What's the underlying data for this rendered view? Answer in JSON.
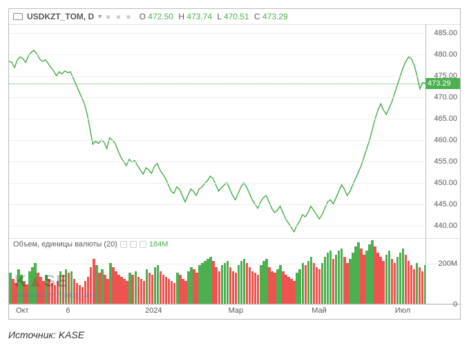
{
  "header": {
    "symbol": "USDKZT_TOM, D",
    "ohlc": {
      "O_lbl": "O",
      "O": "472.50",
      "H_lbl": "H",
      "H": "473.74",
      "L_lbl": "L",
      "L": "470.51",
      "C_lbl": "C",
      "C": "473.29"
    }
  },
  "price_chart": {
    "type": "line",
    "line_color": "#4caf50",
    "line_width": 1.5,
    "grid_color": "#eeeeee",
    "background": "#ffffff",
    "ymin": 437,
    "ymax": 487,
    "yticks": [
      440.0,
      445.0,
      450.0,
      455.0,
      460.0,
      465.0,
      470.0,
      475.0,
      480.0,
      485.0
    ],
    "last_price": 473.29,
    "last_price_line_color": "#4caf50",
    "series": [
      478.5,
      478.2,
      477.0,
      478.8,
      479.5,
      479.0,
      478.2,
      479.8,
      480.6,
      481.0,
      480.2,
      479.0,
      478.4,
      478.8,
      478.0,
      477.0,
      476.2,
      475.0,
      476.0,
      475.5,
      476.2,
      475.8,
      476.0,
      474.5,
      473.0,
      471.5,
      470.0,
      468.5,
      466.0,
      462.5,
      459.0,
      459.8,
      459.2,
      460.0,
      459.5,
      458.0,
      460.5,
      460.0,
      459.2,
      457.5,
      456.0,
      455.0,
      454.0,
      455.5,
      454.8,
      455.2,
      454.0,
      453.0,
      452.0,
      453.5,
      453.0,
      452.2,
      453.8,
      454.5,
      453.0,
      452.0,
      451.0,
      449.5,
      448.0,
      447.5,
      449.0,
      448.5,
      447.0,
      445.5,
      447.0,
      448.5,
      448.0,
      447.0,
      448.5,
      449.0,
      449.8,
      450.5,
      451.5,
      451.0,
      449.5,
      448.0,
      448.8,
      449.5,
      450.0,
      448.5,
      447.0,
      446.0,
      447.5,
      449.0,
      450.0,
      449.0,
      447.5,
      446.0,
      445.0,
      444.0,
      445.5,
      446.5,
      447.0,
      445.5,
      444.0,
      443.0,
      443.5,
      444.5,
      443.0,
      441.5,
      440.5,
      439.5,
      438.5,
      440.0,
      441.0,
      442.5,
      442.0,
      443.0,
      444.5,
      443.5,
      442.5,
      441.5,
      442.5,
      444.0,
      445.5,
      446.0,
      445.0,
      446.5,
      448.0,
      449.5,
      448.5,
      447.0,
      448.0,
      449.5,
      451.0,
      452.5,
      454.0,
      456.0,
      458.0,
      460.0,
      462.5,
      465.0,
      467.0,
      468.5,
      467.0,
      466.0,
      467.5,
      469.0,
      471.0,
      473.0,
      475.0,
      477.0,
      478.5,
      479.5,
      479.0,
      477.5,
      475.0,
      472.0,
      473.5,
      473.29
    ]
  },
  "volume_chart": {
    "type": "bar",
    "title": "Объем, единицы валюты (20)",
    "value": "184M",
    "ymin": 0,
    "ymax": 320,
    "yticks": [
      0,
      200
    ],
    "up_color": "#4caf50",
    "down_color": "#ef5350",
    "bars": [
      {
        "v": 150,
        "c": "u"
      },
      {
        "v": 120,
        "c": "d"
      },
      {
        "v": 100,
        "c": "d"
      },
      {
        "v": 170,
        "c": "u"
      },
      {
        "v": 140,
        "c": "u"
      },
      {
        "v": 110,
        "c": "d"
      },
      {
        "v": 95,
        "c": "d"
      },
      {
        "v": 160,
        "c": "u"
      },
      {
        "v": 180,
        "c": "u"
      },
      {
        "v": 200,
        "c": "u"
      },
      {
        "v": 150,
        "c": "d"
      },
      {
        "v": 130,
        "c": "d"
      },
      {
        "v": 110,
        "c": "d"
      },
      {
        "v": 140,
        "c": "u"
      },
      {
        "v": 120,
        "c": "d"
      },
      {
        "v": 100,
        "c": "d"
      },
      {
        "v": 90,
        "c": "d"
      },
      {
        "v": 110,
        "c": "d"
      },
      {
        "v": 160,
        "c": "u"
      },
      {
        "v": 140,
        "c": "d"
      },
      {
        "v": 170,
        "c": "u"
      },
      {
        "v": 150,
        "c": "d"
      },
      {
        "v": 160,
        "c": "u"
      },
      {
        "v": 120,
        "c": "d"
      },
      {
        "v": 100,
        "c": "d"
      },
      {
        "v": 90,
        "c": "d"
      },
      {
        "v": 80,
        "c": "d"
      },
      {
        "v": 110,
        "c": "d"
      },
      {
        "v": 130,
        "c": "d"
      },
      {
        "v": 180,
        "c": "d"
      },
      {
        "v": 220,
        "c": "d"
      },
      {
        "v": 190,
        "c": "u"
      },
      {
        "v": 150,
        "c": "d"
      },
      {
        "v": 170,
        "c": "u"
      },
      {
        "v": 140,
        "c": "d"
      },
      {
        "v": 120,
        "c": "d"
      },
      {
        "v": 200,
        "c": "u"
      },
      {
        "v": 180,
        "c": "d"
      },
      {
        "v": 160,
        "c": "d"
      },
      {
        "v": 140,
        "c": "d"
      },
      {
        "v": 130,
        "c": "d"
      },
      {
        "v": 120,
        "c": "d"
      },
      {
        "v": 110,
        "c": "d"
      },
      {
        "v": 150,
        "c": "u"
      },
      {
        "v": 140,
        "c": "d"
      },
      {
        "v": 160,
        "c": "u"
      },
      {
        "v": 130,
        "c": "d"
      },
      {
        "v": 120,
        "c": "d"
      },
      {
        "v": 110,
        "c": "d"
      },
      {
        "v": 170,
        "c": "u"
      },
      {
        "v": 150,
        "c": "d"
      },
      {
        "v": 140,
        "c": "d"
      },
      {
        "v": 180,
        "c": "u"
      },
      {
        "v": 190,
        "c": "u"
      },
      {
        "v": 160,
        "c": "d"
      },
      {
        "v": 140,
        "c": "d"
      },
      {
        "v": 130,
        "c": "d"
      },
      {
        "v": 120,
        "c": "d"
      },
      {
        "v": 110,
        "c": "d"
      },
      {
        "v": 100,
        "c": "d"
      },
      {
        "v": 150,
        "c": "u"
      },
      {
        "v": 140,
        "c": "d"
      },
      {
        "v": 120,
        "c": "d"
      },
      {
        "v": 110,
        "c": "d"
      },
      {
        "v": 160,
        "c": "u"
      },
      {
        "v": 180,
        "c": "u"
      },
      {
        "v": 170,
        "c": "d"
      },
      {
        "v": 150,
        "c": "d"
      },
      {
        "v": 190,
        "c": "u"
      },
      {
        "v": 200,
        "c": "u"
      },
      {
        "v": 210,
        "c": "u"
      },
      {
        "v": 220,
        "c": "u"
      },
      {
        "v": 230,
        "c": "u"
      },
      {
        "v": 210,
        "c": "d"
      },
      {
        "v": 180,
        "c": "d"
      },
      {
        "v": 160,
        "c": "d"
      },
      {
        "v": 190,
        "c": "u"
      },
      {
        "v": 200,
        "c": "u"
      },
      {
        "v": 210,
        "c": "u"
      },
      {
        "v": 180,
        "c": "d"
      },
      {
        "v": 160,
        "c": "d"
      },
      {
        "v": 150,
        "c": "d"
      },
      {
        "v": 190,
        "c": "u"
      },
      {
        "v": 210,
        "c": "u"
      },
      {
        "v": 220,
        "c": "u"
      },
      {
        "v": 200,
        "c": "d"
      },
      {
        "v": 180,
        "c": "d"
      },
      {
        "v": 160,
        "c": "d"
      },
      {
        "v": 150,
        "c": "d"
      },
      {
        "v": 140,
        "c": "d"
      },
      {
        "v": 190,
        "c": "u"
      },
      {
        "v": 210,
        "c": "u"
      },
      {
        "v": 220,
        "c": "u"
      },
      {
        "v": 180,
        "c": "d"
      },
      {
        "v": 160,
        "c": "d"
      },
      {
        "v": 150,
        "c": "d"
      },
      {
        "v": 170,
        "c": "u"
      },
      {
        "v": 190,
        "c": "u"
      },
      {
        "v": 160,
        "c": "d"
      },
      {
        "v": 140,
        "c": "d"
      },
      {
        "v": 130,
        "c": "d"
      },
      {
        "v": 120,
        "c": "d"
      },
      {
        "v": 110,
        "c": "d"
      },
      {
        "v": 150,
        "c": "u"
      },
      {
        "v": 170,
        "c": "u"
      },
      {
        "v": 200,
        "c": "u"
      },
      {
        "v": 190,
        "c": "d"
      },
      {
        "v": 210,
        "c": "u"
      },
      {
        "v": 230,
        "c": "u"
      },
      {
        "v": 200,
        "c": "d"
      },
      {
        "v": 180,
        "c": "d"
      },
      {
        "v": 170,
        "c": "d"
      },
      {
        "v": 200,
        "c": "u"
      },
      {
        "v": 230,
        "c": "u"
      },
      {
        "v": 250,
        "c": "u"
      },
      {
        "v": 260,
        "c": "u"
      },
      {
        "v": 220,
        "c": "d"
      },
      {
        "v": 240,
        "c": "u"
      },
      {
        "v": 260,
        "c": "u"
      },
      {
        "v": 270,
        "c": "u"
      },
      {
        "v": 230,
        "c": "d"
      },
      {
        "v": 200,
        "c": "d"
      },
      {
        "v": 220,
        "c": "u"
      },
      {
        "v": 250,
        "c": "u"
      },
      {
        "v": 280,
        "c": "u"
      },
      {
        "v": 300,
        "c": "u"
      },
      {
        "v": 270,
        "c": "d"
      },
      {
        "v": 240,
        "c": "d"
      },
      {
        "v": 260,
        "c": "u"
      },
      {
        "v": 290,
        "c": "u"
      },
      {
        "v": 310,
        "c": "u"
      },
      {
        "v": 280,
        "c": "d"
      },
      {
        "v": 250,
        "c": "d"
      },
      {
        "v": 230,
        "c": "d"
      },
      {
        "v": 210,
        "c": "d"
      },
      {
        "v": 240,
        "c": "u"
      },
      {
        "v": 260,
        "c": "u"
      },
      {
        "v": 220,
        "c": "d"
      },
      {
        "v": 200,
        "c": "d"
      },
      {
        "v": 230,
        "c": "u"
      },
      {
        "v": 250,
        "c": "u"
      },
      {
        "v": 270,
        "c": "u"
      },
      {
        "v": 240,
        "c": "d"
      },
      {
        "v": 210,
        "c": "d"
      },
      {
        "v": 190,
        "c": "d"
      },
      {
        "v": 170,
        "c": "d"
      },
      {
        "v": 200,
        "c": "u"
      },
      {
        "v": 180,
        "c": "d"
      },
      {
        "v": 160,
        "c": "d"
      },
      {
        "v": 190,
        "c": "u"
      }
    ]
  },
  "xaxis": {
    "labels": [
      {
        "text": "Окт",
        "pct": 2
      },
      {
        "text": "6",
        "pct": 14
      },
      {
        "text": "2024",
        "pct": 33
      },
      {
        "text": "Мар",
        "pct": 53
      },
      {
        "text": "Май",
        "pct": 73
      },
      {
        "text": "Июл",
        "pct": 93
      }
    ]
  },
  "watermark": {
    "brand": "KASE",
    "powered": "powered by TradingView"
  },
  "source": "Источник: KASE"
}
